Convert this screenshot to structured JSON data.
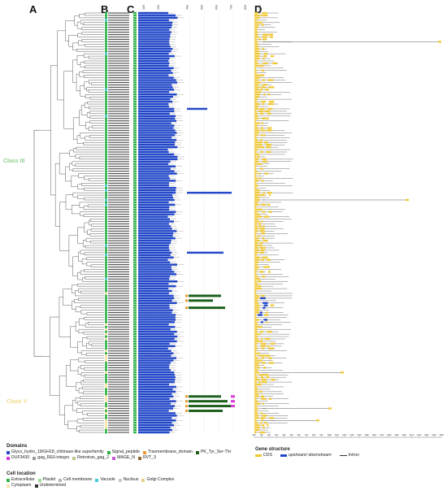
{
  "panels": {
    "a": "A",
    "b": "B",
    "c": "C",
    "d": "D"
  },
  "classes": [
    {
      "label": "Class III",
      "color": "#8fd08f"
    },
    {
      "label": "Class V",
      "color": "#f0d98a"
    }
  ],
  "domain_axis_ticks": [
    "100",
    "200",
    "400",
    "500",
    "600",
    "700",
    "800",
    "900"
  ],
  "gene_axis_ticks": [
    "0kb",
    "1kb",
    "2kb",
    "3kb",
    "4kb",
    "5kb",
    "6kb",
    "7kb",
    "8kb",
    "9kb",
    "10kb",
    "11kb",
    "12kb",
    "13kb",
    "14kb",
    "15kb",
    "16kb",
    "17kb",
    "18kb",
    "19kb",
    "20kb",
    "21kb",
    "22kb",
    "23kb",
    "24kb",
    "25kb"
  ],
  "legend": {
    "domains": {
      "title": "Domains",
      "items": [
        {
          "label": "Glyco_hydro_18/GH18_chitinase-like superfamily",
          "color": "#2348c8"
        },
        {
          "label": "Signal_peptide",
          "color": "#2fb24a"
        },
        {
          "label": "Trasmembrane_domain",
          "color": "#e89a2e"
        },
        {
          "label": "PK_Tyr_Ser-Thr",
          "color": "#1c5e1c"
        },
        {
          "label": "DUF3430",
          "color": "#d63ad6"
        },
        {
          "label": "gag_RE6-integrs",
          "color": "#9a9a9a"
        },
        {
          "label": "Retrotran_gag_2",
          "color": "#b9c98a"
        },
        {
          "label": "MAGE_N",
          "color": "#c85ad6"
        },
        {
          "label": "RVT_3",
          "color": "#8a6a2e"
        }
      ]
    },
    "cell_location": {
      "title": "Cell location",
      "items": [
        {
          "label": "Extracellular",
          "color": "#2fb24a"
        },
        {
          "label": "Plastid",
          "color": "#9fd89a"
        },
        {
          "label": "Cell membrane",
          "color": "#b8b8b8"
        },
        {
          "label": "Vacuole",
          "color": "#48c8d8"
        },
        {
          "label": "Nucleus",
          "color": "#c8c8c8"
        },
        {
          "label": "Golgi Complex",
          "color": "#e6d18a"
        },
        {
          "label": "Cytoplasm",
          "color": "#f4e4a8"
        },
        {
          "label": "Undetermined",
          "color": "#333333"
        }
      ]
    },
    "gene_structure": {
      "title": "Gene structure",
      "items": [
        {
          "label": "CDS",
          "color": "#f0c93a"
        },
        {
          "label": "upstream/ downstream",
          "color": "#2348c8"
        },
        {
          "label": "Intron",
          "color": "#333333"
        }
      ]
    }
  },
  "colors": {
    "gh18": "#2348c8",
    "signal": "#2fb24a",
    "tm": "#e89a2e",
    "pk": "#1c5e1c",
    "duf": "#d63ad6",
    "cds": "#f0c93a",
    "tree": "#333333"
  }
}
